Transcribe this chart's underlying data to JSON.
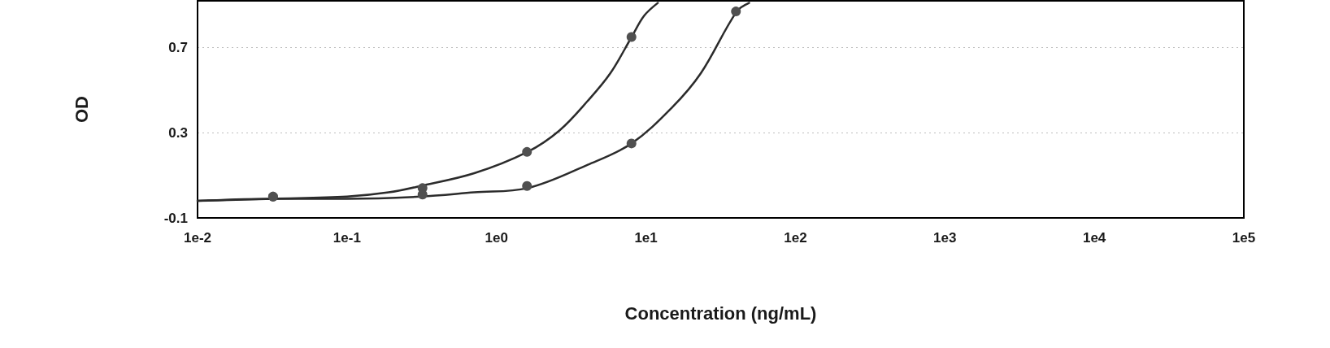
{
  "chart_data": {
    "type": "line",
    "xlabel": "Concentration (ng/mL)",
    "ylabel": "OD",
    "log": "x",
    "xlim": [
      0.01,
      100000
    ],
    "xticks": [
      {
        "value": 0.01,
        "label": "1e-2"
      },
      {
        "value": 0.1,
        "label": "1e-1"
      },
      {
        "value": 1,
        "label": "1e0"
      },
      {
        "value": 10,
        "label": "1e1"
      },
      {
        "value": 100,
        "label": "1e2"
      },
      {
        "value": 1000,
        "label": "1e3"
      },
      {
        "value": 10000,
        "label": "1e4"
      },
      {
        "value": 100000,
        "label": "1e5"
      }
    ],
    "ylim": [
      -0.1,
      0.92
    ],
    "yticks": [
      -0.1,
      0.3,
      0.7
    ],
    "grid": "y",
    "series": [
      {
        "color": "#2b2b2b",
        "marker": "none",
        "x": [
          0.01,
          0.032,
          0.1,
          0.19,
          0.31,
          0.71,
          1.61,
          2.63,
          4.08,
          5.78,
          8.02,
          9.73,
          12
        ],
        "values": [
          -0.02,
          -0.01,
          0.0,
          0.02,
          0.05,
          0.11,
          0.21,
          0.31,
          0.45,
          0.58,
          0.75,
          0.85,
          0.91
        ]
      },
      {
        "color": "#2b2b2b",
        "marker": "none",
        "x": [
          0.01,
          0.032,
          0.1,
          0.31,
          0.71,
          1.61,
          4.08,
          8.02,
          15,
          23.3,
          40.5,
          49
        ],
        "values": [
          -0.02,
          -0.01,
          -0.01,
          0.0,
          0.02,
          0.04,
          0.15,
          0.25,
          0.42,
          0.58,
          0.87,
          0.91
        ]
      },
      {
        "type": "scatter",
        "color": "#505050",
        "marker": "circle",
        "x": [
          0.032,
          0.32,
          1.6,
          8
        ],
        "values": [
          0.0,
          0.04,
          0.21,
          0.75
        ]
      },
      {
        "type": "scatter",
        "color": "#505050",
        "marker": "circle",
        "x": [
          0.032,
          0.32,
          1.6,
          8,
          40
        ],
        "values": [
          0.0,
          0.01,
          0.05,
          0.25,
          0.87
        ]
      }
    ]
  }
}
